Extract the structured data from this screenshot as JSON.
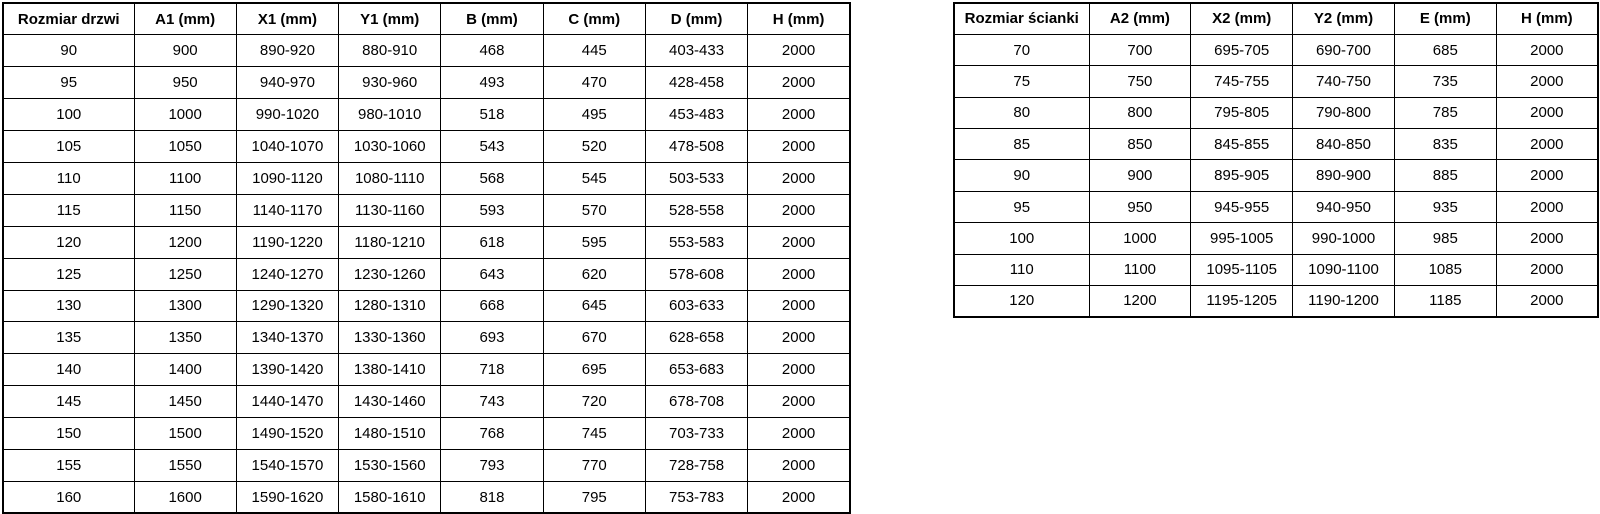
{
  "colors": {
    "background": "#ffffff",
    "border": "#000000",
    "text": "#000000"
  },
  "tables": [
    {
      "name": "door-size-table",
      "headers": [
        "Rozmiar drzwi",
        "A1 (mm)",
        "X1 (mm)",
        "Y1 (mm)",
        "B (mm)",
        "C (mm)",
        "D (mm)",
        "H (mm)"
      ],
      "rows": [
        [
          "90",
          "900",
          "890-920",
          "880-910",
          "468",
          "445",
          "403-433",
          "2000"
        ],
        [
          "95",
          "950",
          "940-970",
          "930-960",
          "493",
          "470",
          "428-458",
          "2000"
        ],
        [
          "100",
          "1000",
          "990-1020",
          "980-1010",
          "518",
          "495",
          "453-483",
          "2000"
        ],
        [
          "105",
          "1050",
          "1040-1070",
          "1030-1060",
          "543",
          "520",
          "478-508",
          "2000"
        ],
        [
          "110",
          "1100",
          "1090-1120",
          "1080-1110",
          "568",
          "545",
          "503-533",
          "2000"
        ],
        [
          "115",
          "1150",
          "1140-1170",
          "1130-1160",
          "593",
          "570",
          "528-558",
          "2000"
        ],
        [
          "120",
          "1200",
          "1190-1220",
          "1180-1210",
          "618",
          "595",
          "553-583",
          "2000"
        ],
        [
          "125",
          "1250",
          "1240-1270",
          "1230-1260",
          "643",
          "620",
          "578-608",
          "2000"
        ],
        [
          "130",
          "1300",
          "1290-1320",
          "1280-1310",
          "668",
          "645",
          "603-633",
          "2000"
        ],
        [
          "135",
          "1350",
          "1340-1370",
          "1330-1360",
          "693",
          "670",
          "628-658",
          "2000"
        ],
        [
          "140",
          "1400",
          "1390-1420",
          "1380-1410",
          "718",
          "695",
          "653-683",
          "2000"
        ],
        [
          "145",
          "1450",
          "1440-1470",
          "1430-1460",
          "743",
          "720",
          "678-708",
          "2000"
        ],
        [
          "150",
          "1500",
          "1490-1520",
          "1480-1510",
          "768",
          "745",
          "703-733",
          "2000"
        ],
        [
          "155",
          "1550",
          "1540-1570",
          "1530-1560",
          "793",
          "770",
          "728-758",
          "2000"
        ],
        [
          "160",
          "1600",
          "1590-1620",
          "1580-1610",
          "818",
          "795",
          "753-783",
          "2000"
        ]
      ]
    },
    {
      "name": "wall-size-table",
      "headers": [
        "Rozmiar ścianki",
        "A2 (mm)",
        "X2 (mm)",
        "Y2 (mm)",
        "E (mm)",
        "H (mm)"
      ],
      "rows": [
        [
          "70",
          "700",
          "695-705",
          "690-700",
          "685",
          "2000"
        ],
        [
          "75",
          "750",
          "745-755",
          "740-750",
          "735",
          "2000"
        ],
        [
          "80",
          "800",
          "795-805",
          "790-800",
          "785",
          "2000"
        ],
        [
          "85",
          "850",
          "845-855",
          "840-850",
          "835",
          "2000"
        ],
        [
          "90",
          "900",
          "895-905",
          "890-900",
          "885",
          "2000"
        ],
        [
          "95",
          "950",
          "945-955",
          "940-950",
          "935",
          "2000"
        ],
        [
          "100",
          "1000",
          "995-1005",
          "990-1000",
          "985",
          "2000"
        ],
        [
          "110",
          "1100",
          "1095-1105",
          "1090-1100",
          "1085",
          "2000"
        ],
        [
          "120",
          "1200",
          "1195-1205",
          "1190-1200",
          "1185",
          "2000"
        ]
      ]
    }
  ]
}
